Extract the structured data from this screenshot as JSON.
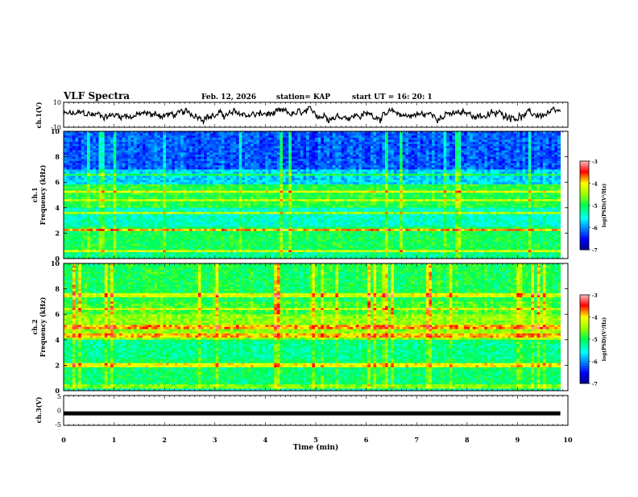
{
  "header": {
    "title": "VLF Spectra",
    "date": "Feb. 12, 2026",
    "station": "station= KAP",
    "start": "start  UT =   16: 20: 1"
  },
  "chart_data": [
    {
      "type": "line",
      "name": "ch1-waveform",
      "ylabel": "ch.1(V)",
      "ylim": [
        -10,
        10
      ],
      "yticks": [
        {
          "v": 10,
          "label": "10"
        },
        {
          "v": -10,
          "label": "-10"
        }
      ],
      "xlim": [
        0,
        9.85
      ],
      "description_series": "noisy waveform, amplitude approx between -7 and 7 V"
    },
    {
      "type": "heatmap",
      "name": "ch1-spectrogram",
      "ylabel": "Frequency (kHz)",
      "channel_label": "ch.1",
      "ylim": [
        0,
        10
      ],
      "yticks": [
        "0",
        "2",
        "4",
        "6",
        "8",
        "10"
      ],
      "colorbar": {
        "label": "log(PSD)(V²/Hz)",
        "range": [
          -7,
          -3
        ],
        "ticks": [
          "-3",
          "-4",
          "-5",
          "-6",
          "-7"
        ]
      }
    },
    {
      "type": "heatmap",
      "name": "ch2-spectrogram",
      "ylabel": "Frequency (kHz)",
      "channel_label": "ch.2",
      "ylim": [
        0,
        10
      ],
      "yticks": [
        "0",
        "2",
        "4",
        "6",
        "8",
        "10"
      ],
      "colorbar": {
        "label": "log(PSD)(V²/Hz)",
        "range": [
          -7,
          -3
        ],
        "ticks": [
          "-3",
          "-4",
          "-5",
          "-6",
          "-7"
        ]
      }
    },
    {
      "type": "line",
      "name": "ch3-waveform",
      "ylabel": "ch.3(V)",
      "ylim": [
        -5,
        5
      ],
      "yticks": [
        {
          "v": 5,
          "label": "5"
        },
        {
          "v": 0,
          "label": "0"
        },
        {
          "v": -5,
          "label": "-5"
        }
      ],
      "constant_value": -1
    }
  ],
  "xaxis": {
    "label": "Time  (min)",
    "range": [
      0,
      10
    ],
    "ticks": [
      "0",
      "1",
      "2",
      "3",
      "4",
      "5",
      "6",
      "7",
      "8",
      "9",
      "10"
    ]
  }
}
